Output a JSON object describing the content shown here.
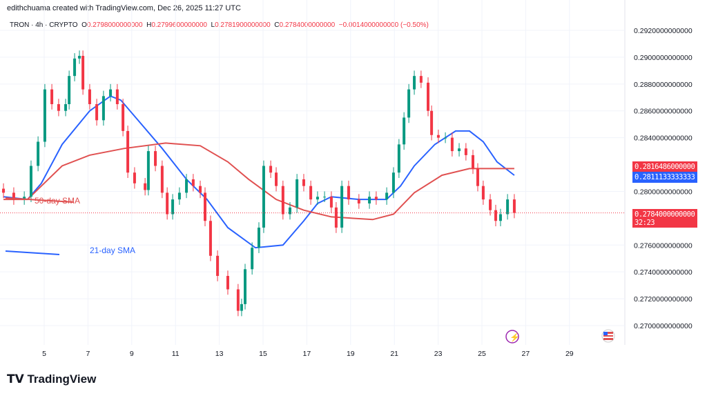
{
  "header": {
    "attribution": "edithchuama created with TradingView.com, Dec 26, 2025 11:27 UTC"
  },
  "legend": {
    "symbol": "TRON · 4h · CRYPTO",
    "o_label": "O",
    "o": "0.2798000000000",
    "h_label": "H",
    "h": "0.2799600000000",
    "l_label": "L",
    "l": "0.2781900000000",
    "c_label": "C",
    "c": "0.2784000000000",
    "change": "−0.0014000000000 (−0.50%)"
  },
  "tags": {
    "sma50": "0.2816486000000",
    "sma21": "0.2811133333333",
    "last": "0.2784000000000",
    "countdown": "32:23"
  },
  "annotations": {
    "sma50": "50-day SMA",
    "sma21": "21-day SMA"
  },
  "brand": "TradingView",
  "colors": {
    "up": "#089981",
    "down": "#f23645",
    "sma21": "#2962ff",
    "sma50": "#e05050"
  },
  "chart_data": {
    "type": "candlestick",
    "y_ticks": [
      "0.2920000000000",
      "0.2900000000000",
      "0.2880000000000",
      "0.2860000000000",
      "0.2840000000000",
      "0.2800000000000",
      "0.2760000000000",
      "0.2740000000000",
      "0.2720000000000",
      "0.2700000000000"
    ],
    "y_tick_values": [
      0.292,
      0.29,
      0.288,
      0.286,
      0.284,
      0.28,
      0.276,
      0.274,
      0.272,
      0.27
    ],
    "x_ticks": [
      "5",
      "7",
      "9",
      "11",
      "13",
      "15",
      "17",
      "19",
      "21",
      "23",
      "25",
      "27",
      "29"
    ],
    "x_tick_values": [
      5,
      7,
      9,
      11,
      13,
      15,
      17,
      19,
      21,
      23,
      25,
      27,
      29
    ],
    "xlim": [
      3,
      31.5
    ],
    "ylim": [
      0.2687,
      0.2932
    ],
    "candles": [
      [
        3.14,
        0.2799
      ],
      [
        3.61,
        0.2794
      ],
      [
        4.09,
        0.2796
      ],
      [
        4.4,
        0.2819
      ],
      [
        4.72,
        0.2837
      ],
      [
        5.03,
        0.2876
      ],
      [
        5.35,
        0.2865
      ],
      [
        5.66,
        0.286
      ],
      [
        5.98,
        0.2865
      ],
      [
        6.14,
        0.2886
      ],
      [
        6.39,
        0.2899
      ],
      [
        6.61,
        0.2901
      ],
      [
        6.77,
        0.2876
      ],
      [
        7.08,
        0.2865
      ],
      [
        7.4,
        0.2853
      ],
      [
        7.71,
        0.2871
      ],
      [
        8.03,
        0.2876
      ],
      [
        8.34,
        0.2865
      ],
      [
        8.6,
        0.2845
      ],
      [
        8.82,
        0.2814
      ],
      [
        9.13,
        0.2806
      ],
      [
        9.61,
        0.2801
      ],
      [
        9.76,
        0.283
      ],
      [
        10.08,
        0.2819
      ],
      [
        10.39,
        0.2799
      ],
      [
        10.62,
        0.2783
      ],
      [
        10.87,
        0.2794
      ],
      [
        11.18,
        0.2799
      ],
      [
        11.5,
        0.2809
      ],
      [
        11.81,
        0.2804
      ],
      [
        12.13,
        0.2799
      ],
      [
        12.35,
        0.2778
      ],
      [
        12.6,
        0.2752
      ],
      [
        12.92,
        0.2737
      ],
      [
        13.39,
        0.2727
      ],
      [
        13.86,
        0.2711
      ],
      [
        14.02,
        0.2716
      ],
      [
        14.18,
        0.2742
      ],
      [
        14.5,
        0.2758
      ],
      [
        14.81,
        0.2773
      ],
      [
        15.03,
        0.2819
      ],
      [
        15.35,
        0.2814
      ],
      [
        15.6,
        0.2804
      ],
      [
        15.91,
        0.2783
      ],
      [
        16.23,
        0.2788
      ],
      [
        16.55,
        0.2809
      ],
      [
        16.86,
        0.2804
      ],
      [
        17.18,
        0.2794
      ],
      [
        17.49,
        0.2796
      ],
      [
        17.81,
        0.2796
      ],
      [
        18.12,
        0.2788
      ],
      [
        18.34,
        0.2773
      ],
      [
        18.6,
        0.2804
      ],
      [
        18.91,
        0.2794
      ],
      [
        19.38,
        0.2791
      ],
      [
        19.86,
        0.2796
      ],
      [
        20.17,
        0.2794
      ],
      [
        20.65,
        0.2799
      ],
      [
        20.96,
        0.2814
      ],
      [
        21.21,
        0.2835
      ],
      [
        21.44,
        0.2855
      ],
      [
        21.66,
        0.2876
      ],
      [
        21.91,
        0.2886
      ],
      [
        22.22,
        0.2881
      ],
      [
        22.54,
        0.286
      ],
      [
        22.7,
        0.2842
      ],
      [
        23.01,
        0.284
      ],
      [
        23.33,
        0.284
      ],
      [
        23.64,
        0.283
      ],
      [
        23.96,
        0.2832
      ],
      [
        24.27,
        0.2827
      ],
      [
        24.59,
        0.2817
      ],
      [
        24.81,
        0.2804
      ],
      [
        25.06,
        0.2794
      ],
      [
        25.38,
        0.2786
      ],
      [
        25.63,
        0.2778
      ],
      [
        25.85,
        0.2783
      ],
      [
        26.17,
        0.2794
      ],
      [
        26.48,
        0.2784
      ]
    ],
    "series": [
      {
        "name": "21-day SMA",
        "points": [
          [
            3.14,
            0.2796
          ],
          [
            4.24,
            0.2794
          ],
          [
            4.87,
            0.2806
          ],
          [
            5.82,
            0.2835
          ],
          [
            7.08,
            0.286
          ],
          [
            8.03,
            0.2871
          ],
          [
            8.5,
            0.2868
          ],
          [
            9.29,
            0.2853
          ],
          [
            10.39,
            0.2832
          ],
          [
            11.5,
            0.2809
          ],
          [
            12.44,
            0.2794
          ],
          [
            13.39,
            0.2773
          ],
          [
            14.65,
            0.2758
          ],
          [
            15.91,
            0.276
          ],
          [
            16.86,
            0.2778
          ],
          [
            17.49,
            0.2791
          ],
          [
            18.12,
            0.2796
          ],
          [
            19.38,
            0.2794
          ],
          [
            20.64,
            0.2794
          ],
          [
            21.28,
            0.2804
          ],
          [
            21.91,
            0.2819
          ],
          [
            22.85,
            0.2835
          ],
          [
            23.8,
            0.2845
          ],
          [
            24.43,
            0.2845
          ],
          [
            25.06,
            0.2837
          ],
          [
            25.69,
            0.2822
          ],
          [
            26.48,
            0.2812
          ]
        ]
      },
      {
        "name": "50-day SMA",
        "points": [
          [
            3.14,
            0.2794
          ],
          [
            4.24,
            0.2794
          ],
          [
            4.87,
            0.2804
          ],
          [
            5.82,
            0.2819
          ],
          [
            7.08,
            0.2827
          ],
          [
            8.66,
            0.2832
          ],
          [
            10.55,
            0.2836
          ],
          [
            12.13,
            0.2834
          ],
          [
            13.39,
            0.2822
          ],
          [
            14.34,
            0.2809
          ],
          [
            15.6,
            0.2794
          ],
          [
            16.86,
            0.2786
          ],
          [
            18.12,
            0.2781
          ],
          [
            20.01,
            0.2779
          ],
          [
            20.96,
            0.2783
          ],
          [
            21.91,
            0.2799
          ],
          [
            23.17,
            0.2812
          ],
          [
            24.43,
            0.2817
          ],
          [
            25.69,
            0.2817
          ],
          [
            26.48,
            0.2817
          ]
        ]
      }
    ]
  }
}
